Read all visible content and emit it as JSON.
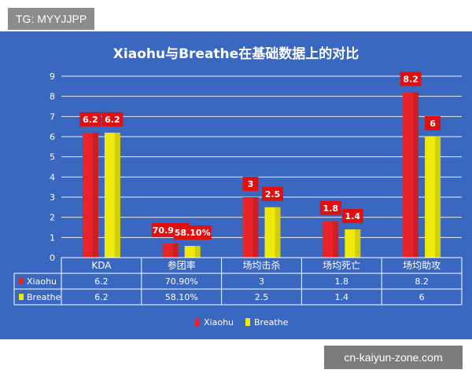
{
  "watermarks": {
    "top": "TG: MYYJJPP",
    "bottom": "cn-kaiyun-zone.com"
  },
  "colors": {
    "background": "#3a67c0",
    "xiaohu": "#e8242a",
    "breathe": "#f0ea0c",
    "label_bg": "#e01010"
  },
  "chart_data": {
    "type": "bar",
    "title": "Xiaohu与Breathe在基础数据上的对比",
    "categories": [
      "KDA",
      "参团率",
      "场均击杀",
      "场均死亡",
      "场均助攻"
    ],
    "ylim": [
      0,
      9
    ],
    "yticks": [
      "0",
      "1",
      "2",
      "3",
      "4",
      "5",
      "6",
      "7",
      "8",
      "9"
    ],
    "grid": true,
    "legend": "bottom",
    "series": [
      {
        "name": "Xiaohu",
        "values": [
          6.2,
          0.709,
          3,
          1.8,
          8.2
        ],
        "labels": [
          "6.2",
          "70.90%",
          "3",
          "1.8",
          "8.2"
        ]
      },
      {
        "name": "Breathe",
        "values": [
          6.2,
          0.581,
          2.5,
          1.4,
          6
        ],
        "labels": [
          "6.2",
          "58.10%",
          "2.5",
          "1.4",
          "6"
        ]
      }
    ]
  }
}
